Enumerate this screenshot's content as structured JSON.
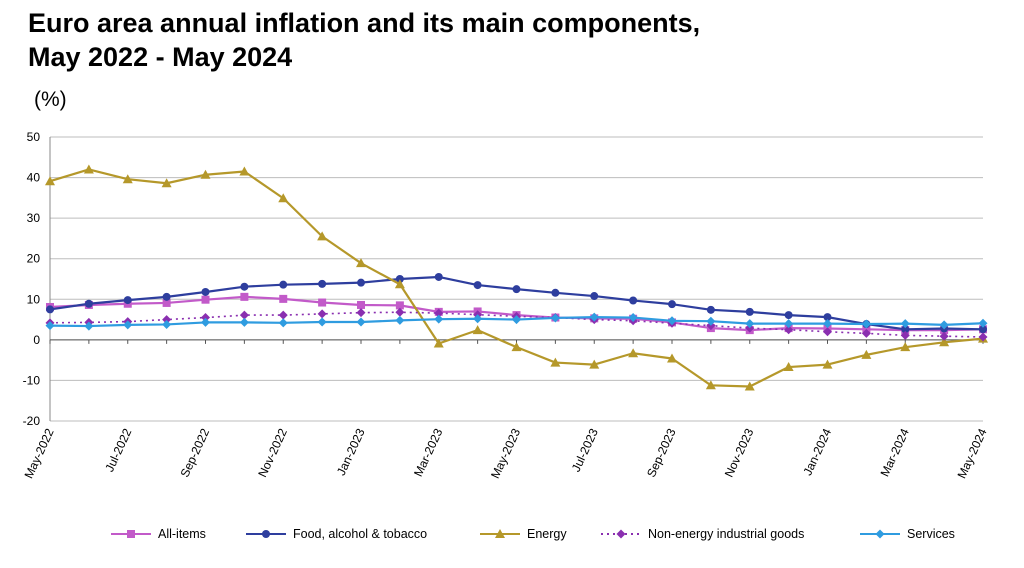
{
  "title_lines": [
    "Euro area annual inflation and its main components,",
    "May 2022 - May 2024"
  ],
  "unit": "(%)",
  "chart_data": {
    "type": "line",
    "categories": [
      "May-2022",
      "Jun-2022",
      "Jul-2022",
      "Aug-2022",
      "Sep-2022",
      "Oct-2022",
      "Nov-2022",
      "Dec-2022",
      "Jan-2023",
      "Feb-2023",
      "Mar-2023",
      "Apr-2023",
      "May-2023",
      "Jun-2023",
      "Jul-2023",
      "Aug-2023",
      "Sep-2023",
      "Oct-2023",
      "Nov-2023",
      "Dec-2023",
      "Jan-2024",
      "Feb-2024",
      "Mar-2024",
      "Apr-2024",
      "May-2024"
    ],
    "x_tick_labels": [
      "May-2022",
      "Jul-2022",
      "Sep-2022",
      "Nov-2022",
      "Jan-2023",
      "Mar-2023",
      "May-2023",
      "Jul-2023",
      "Sep-2023",
      "Nov-2023",
      "Jan-2024",
      "Mar-2024",
      "May-2024"
    ],
    "ylim": [
      -20,
      50
    ],
    "y_ticks": [
      -20,
      -10,
      0,
      10,
      20,
      30,
      40,
      50
    ],
    "grid": true,
    "legend_position": "bottom",
    "series": [
      {
        "name": "All-items",
        "color": "#c25ac9",
        "marker": "square",
        "dash": "solid",
        "values": [
          8.1,
          8.6,
          8.9,
          9.1,
          9.9,
          10.6,
          10.1,
          9.2,
          8.6,
          8.5,
          6.9,
          7.0,
          6.1,
          5.5,
          5.3,
          5.2,
          4.3,
          2.9,
          2.4,
          2.9,
          2.8,
          2.6,
          2.4,
          2.4,
          2.6
        ]
      },
      {
        "name": "Food, alcohol & tobacco",
        "color": "#2e3e9e",
        "marker": "circle",
        "dash": "solid",
        "values": [
          7.5,
          8.9,
          9.8,
          10.6,
          11.8,
          13.1,
          13.6,
          13.8,
          14.1,
          15.0,
          15.5,
          13.5,
          12.5,
          11.6,
          10.8,
          9.7,
          8.8,
          7.4,
          6.9,
          6.1,
          5.6,
          3.9,
          2.6,
          2.8,
          2.6
        ]
      },
      {
        "name": "Energy",
        "color": "#b5982a",
        "marker": "triangle",
        "dash": "solid",
        "values": [
          39.1,
          42.0,
          39.6,
          38.6,
          40.7,
          41.5,
          34.9,
          25.5,
          18.9,
          13.7,
          -0.9,
          2.4,
          -1.8,
          -5.6,
          -6.1,
          -3.3,
          -4.6,
          -11.2,
          -11.5,
          -6.7,
          -6.1,
          -3.7,
          -1.8,
          -0.6,
          0.3
        ]
      },
      {
        "name": "Non-energy industrial goods",
        "color": "#8a2fb0",
        "marker": "diamond",
        "dash": "dotted",
        "values": [
          4.2,
          4.3,
          4.5,
          5.0,
          5.5,
          6.1,
          6.1,
          6.4,
          6.7,
          6.8,
          6.6,
          6.2,
          5.8,
          5.5,
          5.0,
          4.7,
          4.1,
          3.5,
          2.9,
          2.5,
          2.0,
          1.6,
          1.1,
          0.9,
          0.7
        ]
      },
      {
        "name": "Services",
        "color": "#2f9ce0",
        "marker": "diamond",
        "dash": "solid",
        "values": [
          3.5,
          3.4,
          3.7,
          3.8,
          4.3,
          4.3,
          4.2,
          4.4,
          4.4,
          4.8,
          5.1,
          5.2,
          5.0,
          5.4,
          5.6,
          5.5,
          4.7,
          4.6,
          4.0,
          4.0,
          4.0,
          3.9,
          4.0,
          3.7,
          4.1
        ]
      }
    ]
  }
}
